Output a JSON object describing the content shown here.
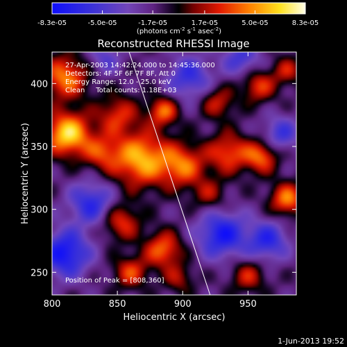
{
  "chart_data": {
    "type": "heatmap",
    "title": "Reconstructed RHESSI Image",
    "xlabel": "Heliocentric X (arcsec)",
    "ylabel": "Heliocentric Y (arcsec)",
    "xlim": [
      800,
      987
    ],
    "ylim": [
      232,
      425
    ],
    "x_ticks": [
      800,
      850,
      900,
      950
    ],
    "y_ticks": [
      250,
      300,
      350,
      400
    ],
    "colorbar": {
      "ticks": [
        -8.3e-05,
        -5e-05,
        -1.7e-05,
        1.7e-05,
        5e-05,
        8.3e-05
      ],
      "tick_labels": [
        "-8.3e-05",
        "-5.0e-05",
        "-1.7e-05",
        "1.7e-05",
        "5.0e-05",
        "8.3e-05"
      ],
      "unit_label": "(photons cm",
      "unit_exp1": "-2",
      "unit_mid": " s",
      "unit_exp2": "-1",
      "unit_end": " asec",
      "unit_exp3": "-2",
      "unit_close": ")",
      "range": [
        -8.3e-05,
        8.3e-05
      ]
    },
    "info_lines": [
      "27-Apr-2003 14:42:24.000 to 14:45:36.000",
      "Detectors: 4F 5F 6F 7F 8F, Att 0",
      "Energy Range: 12.0 - 25.0 keV",
      "Clean     Total counts: 1.18E+03"
    ],
    "peak_label": "Position of Peak = [808,360]",
    "peak": {
      "x": 808,
      "y": 360
    },
    "limb_line": [
      {
        "x": 859,
        "y": 425
      },
      {
        "x": 921,
        "y": 232
      }
    ],
    "sources": [
      {
        "x": 868,
        "y": 340,
        "amp": 7.2e-05,
        "sigma": 15
      },
      {
        "x": 900,
        "y": 335,
        "amp": 5.5e-05,
        "sigma": 12
      },
      {
        "x": 935,
        "y": 345,
        "amp": 5e-05,
        "sigma": 11
      },
      {
        "x": 812,
        "y": 360,
        "amp": 8.3e-05,
        "sigma": 12
      },
      {
        "x": 810,
        "y": 405,
        "amp": 6e-05,
        "sigma": 12
      },
      {
        "x": 850,
        "y": 375,
        "amp": 4.2e-05,
        "sigma": 11
      },
      {
        "x": 885,
        "y": 378,
        "amp": 5.5e-05,
        "sigma": 8
      },
      {
        "x": 838,
        "y": 345,
        "amp": 4e-05,
        "sigma": 10
      },
      {
        "x": 960,
        "y": 342,
        "amp": 5.5e-05,
        "sigma": 9
      },
      {
        "x": 958,
        "y": 398,
        "amp": 4.5e-05,
        "sigma": 9
      },
      {
        "x": 927,
        "y": 385,
        "amp": 3.8e-05,
        "sigma": 9
      },
      {
        "x": 885,
        "y": 268,
        "amp": 5.5e-05,
        "sigma": 10
      },
      {
        "x": 853,
        "y": 290,
        "amp": 4.5e-05,
        "sigma": 10
      },
      {
        "x": 860,
        "y": 250,
        "amp": 4.5e-05,
        "sigma": 9
      },
      {
        "x": 980,
        "y": 308,
        "amp": 6e-05,
        "sigma": 9
      },
      {
        "x": 950,
        "y": 247,
        "amp": 3.8e-05,
        "sigma": 9
      },
      {
        "x": 920,
        "y": 312,
        "amp": 3e-05,
        "sigma": 9
      },
      {
        "x": 897,
        "y": 245,
        "amp": 3e-05,
        "sigma": 8
      },
      {
        "x": 980,
        "y": 410,
        "amp": 3.5e-05,
        "sigma": 8
      },
      {
        "x": 830,
        "y": 305,
        "amp": -5e-05,
        "sigma": 12
      },
      {
        "x": 810,
        "y": 265,
        "amp": -6.5e-05,
        "sigma": 13
      },
      {
        "x": 930,
        "y": 280,
        "amp": -6e-05,
        "sigma": 13
      },
      {
        "x": 965,
        "y": 275,
        "amp": -5e-05,
        "sigma": 11
      },
      {
        "x": 905,
        "y": 405,
        "amp": -4.5e-05,
        "sigma": 12
      },
      {
        "x": 945,
        "y": 420,
        "amp": -4e-05,
        "sigma": 10
      },
      {
        "x": 975,
        "y": 360,
        "amp": -4e-05,
        "sigma": 10
      },
      {
        "x": 840,
        "y": 420,
        "amp": -3e-05,
        "sigma": 9
      }
    ],
    "background_level": -1.5e-05,
    "footer_date": "1-Jun-2013 19:52"
  }
}
